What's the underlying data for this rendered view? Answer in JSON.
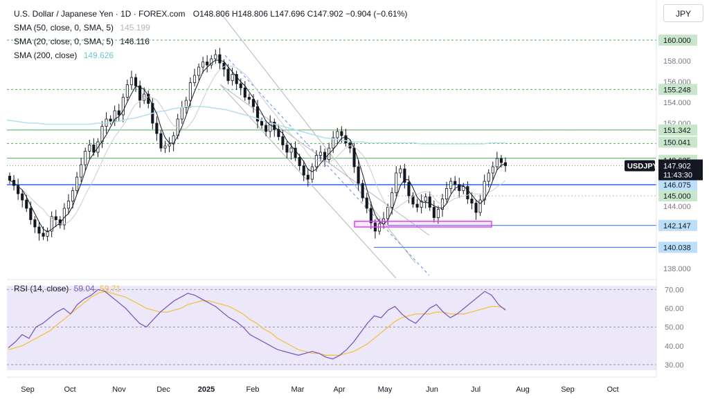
{
  "header": {
    "symbol": "U.S. Dollar / Japanese Yen · 1D · FOREX.com",
    "ohlc": "O148.806  H148.806  L147.696  C147.902  −0.904 (−0.61%)",
    "sma50_label": "SMA (50, close, 0, SMA, 5)",
    "sma50_value": "145.199",
    "sma20_label": "SMA (20, close, 0, SMA, 5)",
    "sma20_value": "146.116",
    "sma200_label": "SMA (200, close)",
    "sma200_value": "149.626",
    "rsi_label": "RSI (14, close)",
    "rsi_value": "59.04",
    "rsi_ma_value": "59.71"
  },
  "currency": "JPY",
  "colors": {
    "up": "#131722",
    "down": "#131722",
    "sma200": "#b3e0ec",
    "sma20": "#131722",
    "sma50": "#c9cbd0",
    "level_blue": "#2962ff",
    "level_green": "#4caf50",
    "rsi_line": "#7e57c2",
    "rsi_ma": "#f0c244",
    "rsi_band": "#ede8f9",
    "zone": "#e040fb"
  },
  "chart_data": {
    "type": "candlestick",
    "ylim": [
      137.2,
      161.2
    ],
    "y_ticks": [
      "160.000",
      "158.000",
      "156.000",
      "155.248",
      "154.000",
      "152.000",
      "151.342",
      "150.041",
      "148.625",
      "147.902",
      "146.075",
      "145.000",
      "144.000",
      "142.147",
      "140.038",
      "138.000"
    ],
    "x_labels": [
      "Sep",
      "Oct",
      "Nov",
      "Dec",
      "2025",
      "Feb",
      "Mar",
      "Apr",
      "May",
      "Jun",
      "Jul",
      "Aug",
      "Sep",
      "Oct"
    ],
    "price_tag": {
      "symbol": "USDJPY",
      "price": "147.902",
      "countdown": "11:43:30"
    },
    "levels": {
      "green": [
        "160.000",
        "155.248",
        "151.342",
        "150.041",
        "148.625"
      ],
      "blue": [
        "146.075",
        "145.000",
        "142.147",
        "140.038"
      ]
    },
    "rsi_ticks": [
      "70.00",
      "60.00",
      "50.00",
      "40.00",
      "30.00"
    ],
    "close_series": [
      146.5,
      146.0,
      145.2,
      144.6,
      143.8,
      142.7,
      142.0,
      141.4,
      141.1,
      141.6,
      143.0,
      142.7,
      142.2,
      143.8,
      144.5,
      145.5,
      146.8,
      148.0,
      149.3,
      149.9,
      149.2,
      150.2,
      151.7,
      152.4,
      152.2,
      153.2,
      152.8,
      154.5,
      155.7,
      156.4,
      155.6,
      154.2,
      154.8,
      153.9,
      152.0,
      151.0,
      149.6,
      149.8,
      150.0,
      150.8,
      152.4,
      153.5,
      154.2,
      155.9,
      156.6,
      157.4,
      157.9,
      157.6,
      158.2,
      158.6,
      157.8,
      157.2,
      156.1,
      156.7,
      155.8,
      155.4,
      154.5,
      154.3,
      153.6,
      152.2,
      151.8,
      151.2,
      152.1,
      151.4,
      150.7,
      149.9,
      149.2,
      149.6,
      148.7,
      147.9,
      147.0,
      146.6,
      147.8,
      148.9,
      149.2,
      148.5,
      149.6,
      150.6,
      151.2,
      150.8,
      150.1,
      149.6,
      147.8,
      146.2,
      144.8,
      143.8,
      142.4,
      141.6,
      142.3,
      142.8,
      143.9,
      145.3,
      147.2,
      147.6,
      146.3,
      145.0,
      144.2,
      143.9,
      144.5,
      144.9,
      143.9,
      142.9,
      143.7,
      144.7,
      145.7,
      146.4,
      146.1,
      145.5,
      145.9,
      144.7,
      144.3,
      143.4,
      144.6,
      146.4,
      147.2,
      147.8,
      148.6,
      148.2,
      147.902
    ],
    "sma200": [
      152.3,
      152.2,
      152.1,
      152.0,
      152.0,
      151.9,
      151.9,
      151.9,
      151.9,
      151.9,
      151.9,
      151.9,
      152.0,
      152.0,
      152.1,
      152.2,
      152.4,
      152.5,
      152.7,
      152.9,
      153.1,
      153.2,
      153.4,
      153.5,
      153.6,
      153.6,
      153.6,
      153.5,
      153.4,
      153.3,
      153.1,
      152.9,
      152.7,
      152.5,
      152.2,
      152.0,
      151.8,
      151.6,
      151.4,
      151.2,
      151.0,
      150.8,
      150.6,
      150.5,
      150.4,
      150.3,
      150.2,
      150.2,
      150.1,
      150.1,
      150.1,
      150.1,
      150.1,
      150.1,
      150.1,
      150.0,
      150.0,
      150.0,
      150.0,
      150.0,
      150.0,
      150.0,
      150.0,
      150.0,
      150.1,
      150.1,
      150.1
    ],
    "rsi": [
      39,
      42,
      46,
      44,
      50,
      52,
      55,
      58,
      60,
      57,
      62,
      65,
      67,
      70,
      69,
      66,
      63,
      60,
      56,
      52,
      50,
      54,
      58,
      61,
      64,
      66,
      68,
      67,
      65,
      63,
      61,
      58,
      55,
      53,
      50,
      46,
      44,
      42,
      40,
      38,
      37,
      36,
      35,
      36,
      37,
      36,
      34,
      33,
      35,
      38,
      42,
      47,
      52,
      56,
      55,
      59,
      61,
      57,
      54,
      52,
      56,
      60,
      62,
      58,
      55,
      57,
      60,
      63,
      66,
      69,
      67,
      62,
      59.04
    ],
    "rsi_ma": [
      38,
      39,
      40,
      42,
      44,
      46,
      48,
      51,
      54,
      57,
      60,
      63,
      66,
      68,
      69,
      68,
      67,
      66,
      64,
      62,
      60,
      59,
      58,
      58,
      59,
      60,
      62,
      63,
      64,
      64,
      63,
      62,
      61,
      59,
      57,
      54,
      52,
      49,
      47,
      44,
      42,
      40,
      38,
      37,
      36,
      36,
      35,
      35,
      35,
      36,
      37,
      39,
      41,
      44,
      47,
      50,
      53,
      55,
      56,
      57,
      57,
      57,
      58,
      58,
      57,
      57,
      57,
      58,
      59,
      60,
      61,
      61,
      59.71
    ]
  }
}
